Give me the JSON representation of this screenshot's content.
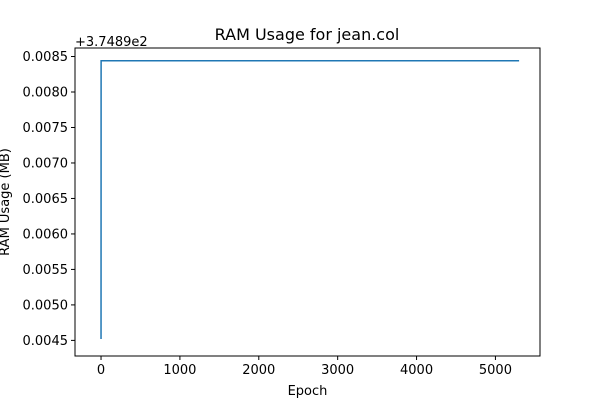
{
  "chart_data": {
    "type": "line",
    "title": "RAM Usage for jean.col",
    "xlabel": "Epoch",
    "ylabel": "RAM Usage (MB)",
    "y_offset_label": "+3.7489e2",
    "xlim": [
      -330,
      5565
    ],
    "ylim": [
      0.00428,
      0.00862
    ],
    "xticks": [
      0,
      1000,
      2000,
      3000,
      4000,
      5000
    ],
    "xtick_labels": [
      "0",
      "1000",
      "2000",
      "3000",
      "4000",
      "5000"
    ],
    "yticks": [
      0.0045,
      0.005,
      0.0055,
      0.006,
      0.0065,
      0.007,
      0.0075,
      0.008,
      0.0085
    ],
    "ytick_labels": [
      "0.0045",
      "0.0050",
      "0.0055",
      "0.0060",
      "0.0065",
      "0.0070",
      "0.0075",
      "0.0080",
      "0.0085"
    ],
    "grid": false,
    "series": [
      {
        "color": "#1f77b4",
        "x": [
          0,
          1,
          5300
        ],
        "y": [
          0.00452,
          0.00844,
          0.00844
        ]
      }
    ]
  }
}
